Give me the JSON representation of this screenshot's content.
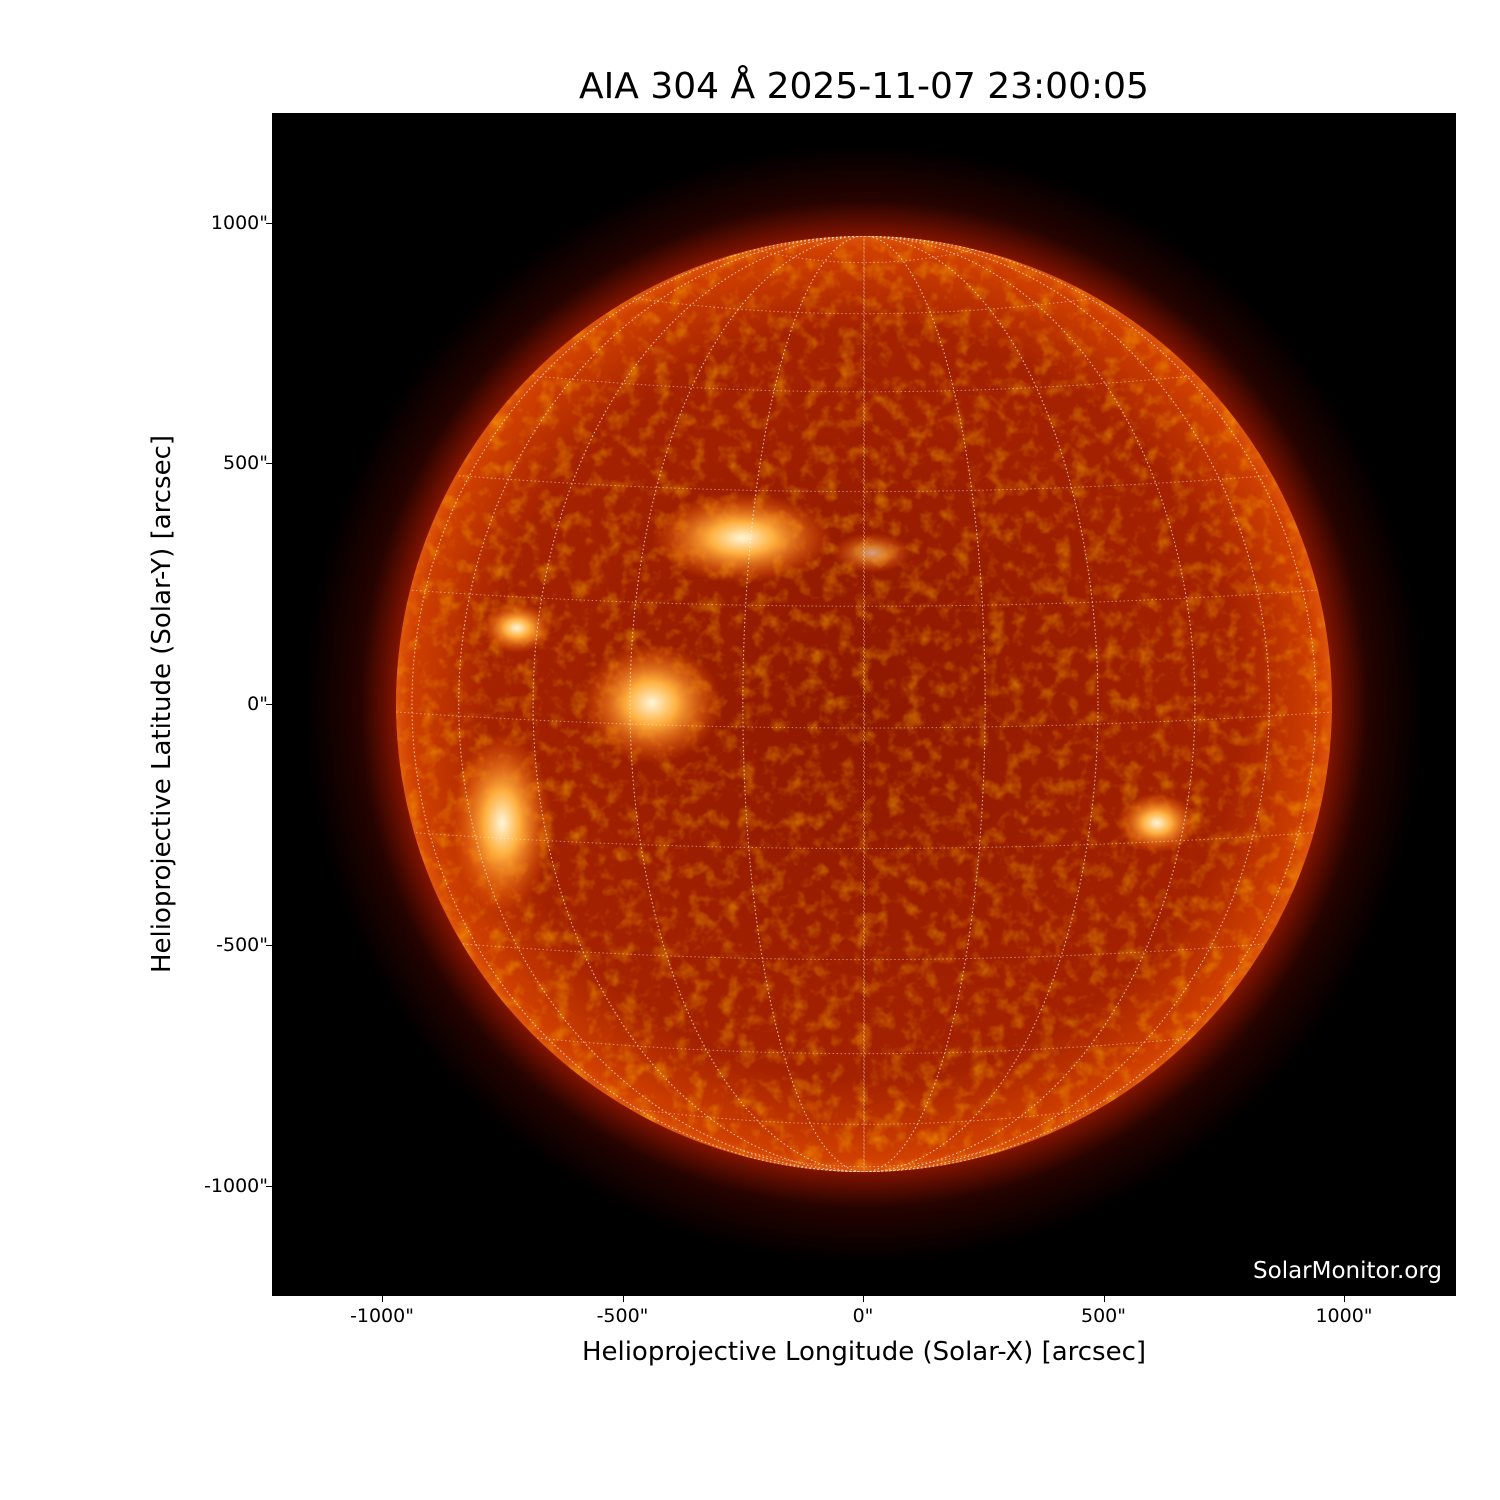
{
  "title": "AIA 304 Å 2025-11-07 23:00:05",
  "xlabel": "Helioprojective Longitude (Solar-X) [arcsec]",
  "ylabel": "Helioprojective Latitude (Solar-Y) [arcsec]",
  "x_ticks": [
    "-1000\"",
    "-500\"",
    "0\"",
    "500\"",
    "1000\""
  ],
  "y_ticks": [
    "1000\"",
    "500\"",
    "0\"",
    "-500\"",
    "-1000\""
  ],
  "x_tick_values": [
    -1000,
    -500,
    0,
    500,
    1000
  ],
  "y_tick_values": [
    1000,
    500,
    0,
    -500,
    -1000
  ],
  "watermark": "SolarMonitor.org",
  "colors": {
    "disk": "#b82a00",
    "bright": "#ffd27a",
    "background": "#000000",
    "grid": "#ffffff"
  }
}
